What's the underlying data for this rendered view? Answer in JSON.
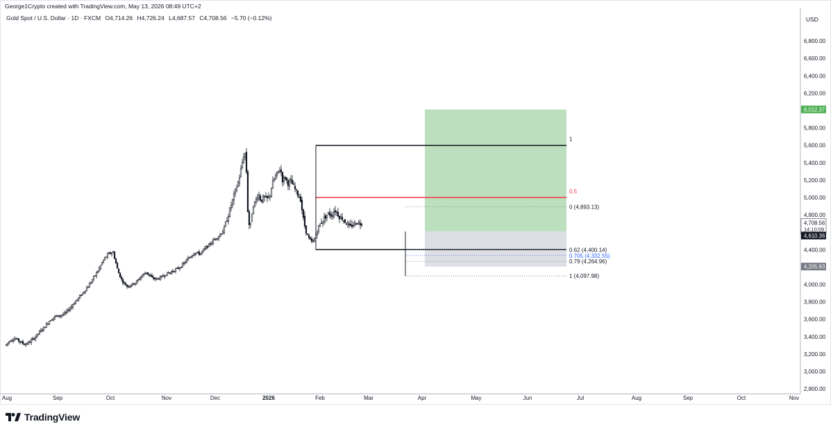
{
  "header": {
    "created_by": "George1Crypto created with TradingView.com, May 13, 2026 08:49 UTC+2"
  },
  "symbol": {
    "name": "Gold Spot / U.S. Dollar · 1D · FXCM",
    "open": "O4,714.26",
    "high": "H4,726.24",
    "low": "L4,687.57",
    "close": "C4,708.56",
    "change": "−5.70 (−0.12%)"
  },
  "price_axis": {
    "currency": "USD",
    "ticks": [
      "6,800.00",
      "6,600.00",
      "6,400.00",
      "6,200.00",
      "6,000.00",
      "5,800.00",
      "5,600.00",
      "5,400.00",
      "5,200.00",
      "5,000.00",
      "4,800.00",
      "4,600.00",
      "4,400.00",
      "4,200.00",
      "4,000.00",
      "3,800.00",
      "3,600.00",
      "3,400.00",
      "3,200.00",
      "3,000.00",
      "2,800.00"
    ],
    "badges": {
      "target": "6,012.37",
      "last_price": "4,708.56",
      "countdown": "14:10:09",
      "entry": "4,610.36",
      "stop": "4,205.83"
    }
  },
  "time_axis": {
    "labels": [
      "Aug",
      "Sep",
      "Oct",
      "Nov",
      "Dec",
      "2026",
      "Feb",
      "Mar",
      "Apr",
      "May",
      "Jun",
      "Jul",
      "Aug",
      "Sep",
      "Oct",
      "Nov"
    ]
  },
  "fib_retracement": {
    "level_1": "1",
    "level_05": "0.5"
  },
  "fib_extension": {
    "level_0": "0 (4,893.13)",
    "level_062": "0.62 (4,400.14)",
    "level_0705": "0.705 (4,332.55)",
    "level_079": "0.79 (4,264.96)",
    "level_1": "1 (4,097.98)"
  },
  "position": {
    "type": "long",
    "entry": 4610.36,
    "target": 6012.37,
    "stop": 4205.83
  },
  "colors": {
    "up": "#089981",
    "down": "#f23645",
    "candle": "#131722",
    "profit_zone": "#a5d6a7",
    "loss_zone": "#d1d4dc",
    "fib_red": "#f23645",
    "fib_blue": "#2962ff",
    "badge_green": "#4caf50",
    "badge_dark": "#131722",
    "badge_grey": "#787b86"
  },
  "brand": {
    "name": "TradingView"
  },
  "chart_data": {
    "type": "candlestick",
    "symbol": "XAUUSD",
    "timeframe": "1D",
    "ylim": [
      2800,
      6900
    ],
    "x_labels": [
      "Aug",
      "Sep",
      "Oct",
      "Nov",
      "Dec",
      "2026",
      "Feb",
      "Mar",
      "Apr",
      "May",
      "Jun",
      "Jul",
      "Aug",
      "Sep",
      "Oct",
      "Nov"
    ],
    "price_path": [
      [
        0,
        3300
      ],
      [
        7,
        3360
      ],
      [
        14,
        3380
      ],
      [
        21,
        3340
      ],
      [
        28,
        3310
      ],
      [
        35,
        3340
      ],
      [
        42,
        3390
      ],
      [
        50,
        3460
      ],
      [
        57,
        3520
      ],
      [
        64,
        3590
      ],
      [
        71,
        3630
      ],
      [
        78,
        3640
      ],
      [
        85,
        3660
      ],
      [
        92,
        3720
      ],
      [
        99,
        3790
      ],
      [
        106,
        3850
      ],
      [
        113,
        3920
      ],
      [
        120,
        3990
      ],
      [
        127,
        4080
      ],
      [
        134,
        4170
      ],
      [
        141,
        4280
      ],
      [
        148,
        4350
      ],
      [
        155,
        4370
      ],
      [
        162,
        4150
      ],
      [
        168,
        4040
      ],
      [
        175,
        3980
      ],
      [
        182,
        4000
      ],
      [
        189,
        4030
      ],
      [
        196,
        4100
      ],
      [
        203,
        4140
      ],
      [
        210,
        4080
      ],
      [
        217,
        4060
      ],
      [
        224,
        4080
      ],
      [
        231,
        4120
      ],
      [
        238,
        4140
      ],
      [
        245,
        4170
      ],
      [
        252,
        4200
      ],
      [
        259,
        4260
      ],
      [
        266,
        4320
      ],
      [
        273,
        4370
      ],
      [
        280,
        4350
      ],
      [
        287,
        4410
      ],
      [
        294,
        4460
      ],
      [
        301,
        4520
      ],
      [
        308,
        4560
      ],
      [
        315,
        4640
      ],
      [
        322,
        4830
      ],
      [
        329,
        5020
      ],
      [
        336,
        5200
      ],
      [
        343,
        5480
      ],
      [
        346,
        5520
      ],
      [
        349,
        4850
      ],
      [
        352,
        4610
      ],
      [
        356,
        4900
      ],
      [
        360,
        4950
      ],
      [
        364,
        5050
      ],
      [
        368,
        4960
      ],
      [
        372,
        5000
      ],
      [
        376,
        4980
      ],
      [
        380,
        5000
      ],
      [
        384,
        5150
      ],
      [
        388,
        5230
      ],
      [
        392,
        5280
      ],
      [
        396,
        5340
      ],
      [
        399,
        5200
      ],
      [
        403,
        5230
      ],
      [
        407,
        5160
      ],
      [
        411,
        5190
      ],
      [
        414,
        5140
      ],
      [
        418,
        5080
      ],
      [
        422,
        5020
      ],
      [
        425,
        4980
      ],
      [
        429,
        4750
      ],
      [
        433,
        4600
      ],
      [
        437,
        4530
      ],
      [
        441,
        4490
      ],
      [
        444,
        4500
      ],
      [
        448,
        4600
      ],
      [
        451,
        4660
      ],
      [
        455,
        4720
      ],
      [
        459,
        4760
      ],
      [
        462,
        4790
      ],
      [
        466,
        4820
      ],
      [
        470,
        4790
      ],
      [
        474,
        4860
      ],
      [
        477,
        4830
      ],
      [
        481,
        4780
      ],
      [
        485,
        4760
      ],
      [
        488,
        4730
      ],
      [
        492,
        4700
      ],
      [
        496,
        4650
      ],
      [
        499,
        4680
      ],
      [
        503,
        4700
      ],
      [
        507,
        4720
      ],
      [
        510,
        4700
      ],
      [
        514,
        4708.56
      ]
    ],
    "fib_retracement": {
      "high": 5600,
      "low": 4400,
      "mid": 5000
    },
    "fib_extension_levels": [
      {
        "ratio": 0,
        "price": 4893.13
      },
      {
        "ratio": 0.62,
        "price": 4400.14
      },
      {
        "ratio": 0.705,
        "price": 4332.55
      },
      {
        "ratio": 0.79,
        "price": 4264.96
      },
      {
        "ratio": 1,
        "price": 4097.98
      }
    ],
    "long_position": {
      "entry": 4610.36,
      "target": 6012.37,
      "stop": 4205.83
    },
    "last_price": 4708.56
  }
}
